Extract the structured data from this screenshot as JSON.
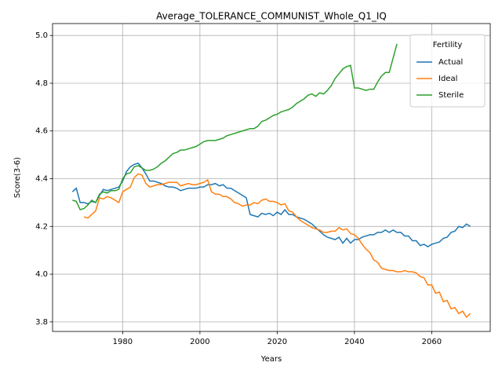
{
  "chart_data": {
    "type": "line",
    "title": "Average_TOLERANCE_COMMUNIST_Whole_Q1_IQ",
    "x_label": "Years",
    "y_label": "Score(3-6)",
    "legend_title": "Fertility",
    "legend_position": "upper right",
    "grid": true,
    "x": [
      1967,
      1968,
      1969,
      1970,
      1971,
      1972,
      1973,
      1974,
      1975,
      1976,
      1977,
      1978,
      1979,
      1980,
      1981,
      1982,
      1983,
      1984,
      1985,
      1986,
      1987,
      1988,
      1989,
      1990,
      1991,
      1992,
      1993,
      1994,
      1995,
      1996,
      1997,
      1998,
      1999,
      2000,
      2001,
      2002,
      2003,
      2004,
      2005,
      2006,
      2007,
      2008,
      2009,
      2010,
      2011,
      2012,
      2013,
      2014,
      2015,
      2016,
      2017,
      2018,
      2019,
      2020,
      2021,
      2022,
      2023,
      2024,
      2025,
      2026,
      2027,
      2028,
      2029,
      2030,
      2031,
      2032,
      2033,
      2034,
      2035,
      2036,
      2037,
      2038,
      2039,
      2040,
      2041,
      2042,
      2043,
      2044,
      2045,
      2046,
      2047,
      2048,
      2049,
      2050,
      2051,
      2052,
      2053,
      2054,
      2055,
      2056,
      2057,
      2058,
      2059,
      2060,
      2061,
      2062,
      2063,
      2064,
      2065,
      2066,
      2067,
      2068,
      2069,
      2070
    ],
    "xlim": [
      1961.85,
      2075.15
    ],
    "xticks": [
      1980,
      2000,
      2020,
      2040,
      2060
    ],
    "ylim": [
      3.76,
      5.05
    ],
    "yticks": [
      3.8,
      {
        "value": 4,
        "label": "4.0"
      },
      4.2,
      4.4,
      4.6,
      4.8,
      {
        "value": 5,
        "label": "5.0"
      }
    ],
    "series": [
      {
        "name": "Actual",
        "color": "#1f77b4",
        "values": [
          4.345,
          4.36,
          4.3,
          4.3,
          4.295,
          4.305,
          4.3,
          4.33,
          4.355,
          4.35,
          4.355,
          4.36,
          4.365,
          4.39,
          4.43,
          4.45,
          4.46,
          4.465,
          4.445,
          4.42,
          4.39,
          4.39,
          4.385,
          4.38,
          4.37,
          4.365,
          4.365,
          4.36,
          4.35,
          4.355,
          4.36,
          4.36,
          4.36,
          4.365,
          4.365,
          4.375,
          4.375,
          4.38,
          4.37,
          4.375,
          4.36,
          4.36,
          4.35,
          4.34,
          4.33,
          4.32,
          4.25,
          4.245,
          4.24,
          4.255,
          4.25,
          4.255,
          4.245,
          4.26,
          4.25,
          4.27,
          4.25,
          4.25,
          4.24,
          4.235,
          4.23,
          4.22,
          4.21,
          4.195,
          4.18,
          4.165,
          4.155,
          4.15,
          4.145,
          4.155,
          4.13,
          4.15,
          4.13,
          4.145,
          4.145,
          4.155,
          4.16,
          4.165,
          4.165,
          4.175,
          4.175,
          4.185,
          4.175,
          4.185,
          4.175,
          4.175,
          4.16,
          4.16,
          4.14,
          4.14,
          4.12,
          4.125,
          4.115,
          4.125,
          4.13,
          4.135,
          4.15,
          4.155,
          4.175,
          4.18,
          4.2,
          4.195,
          4.21,
          4.2
        ]
      },
      {
        "name": "Ideal",
        "color": "#ff7f0e",
        "values": [
          null,
          null,
          null,
          4.24,
          4.235,
          4.25,
          4.265,
          4.32,
          4.315,
          4.325,
          4.32,
          4.31,
          4.3,
          4.345,
          4.355,
          4.365,
          4.405,
          4.42,
          4.415,
          4.38,
          4.365,
          4.37,
          4.375,
          4.375,
          4.38,
          4.385,
          4.385,
          4.385,
          4.37,
          4.375,
          4.38,
          4.375,
          4.375,
          4.38,
          4.385,
          4.395,
          4.345,
          4.335,
          4.335,
          4.325,
          4.325,
          4.315,
          4.3,
          4.295,
          4.285,
          4.29,
          4.29,
          4.3,
          4.295,
          4.31,
          4.315,
          4.305,
          4.305,
          4.3,
          4.29,
          4.295,
          4.265,
          4.26,
          4.24,
          4.225,
          4.215,
          4.205,
          4.195,
          4.19,
          4.185,
          4.175,
          4.175,
          4.18,
          4.18,
          4.195,
          4.185,
          4.19,
          4.17,
          4.165,
          4.15,
          4.125,
          4.105,
          4.09,
          4.06,
          4.05,
          4.025,
          4.02,
          4.015,
          4.015,
          4.01,
          4.01,
          4.015,
          4.01,
          4.01,
          4.005,
          3.99,
          3.985,
          3.955,
          3.955,
          3.92,
          3.925,
          3.885,
          3.89,
          3.855,
          3.86,
          3.835,
          3.845,
          3.82,
          3.835
        ]
      },
      {
        "name": "Sterile",
        "color": "#2ca02c",
        "values": [
          4.31,
          4.305,
          4.27,
          4.275,
          4.29,
          4.31,
          4.3,
          4.335,
          4.345,
          4.34,
          4.35,
          4.35,
          4.355,
          4.4,
          4.42,
          4.425,
          4.45,
          4.455,
          4.445,
          4.435,
          4.435,
          4.44,
          4.45,
          4.465,
          4.475,
          4.49,
          4.505,
          4.51,
          4.52,
          4.52,
          4.525,
          4.53,
          4.535,
          4.545,
          4.555,
          4.56,
          4.56,
          4.56,
          4.565,
          4.57,
          4.58,
          4.585,
          4.59,
          4.595,
          4.6,
          4.605,
          4.61,
          4.61,
          4.62,
          4.64,
          4.645,
          4.655,
          4.665,
          4.67,
          4.68,
          4.685,
          4.69,
          4.7,
          4.715,
          4.725,
          4.735,
          4.75,
          4.755,
          4.745,
          4.76,
          4.755,
          4.77,
          4.79,
          4.82,
          4.84,
          4.86,
          4.87,
          4.875,
          4.78,
          4.78,
          4.775,
          4.77,
          4.775,
          4.775,
          4.805,
          4.83,
          4.845,
          4.845,
          4.905,
          4.965,
          null,
          null,
          null,
          null,
          null,
          null,
          null,
          null,
          null,
          null,
          null,
          null,
          null,
          null,
          null,
          null,
          null,
          null,
          null
        ]
      }
    ]
  }
}
